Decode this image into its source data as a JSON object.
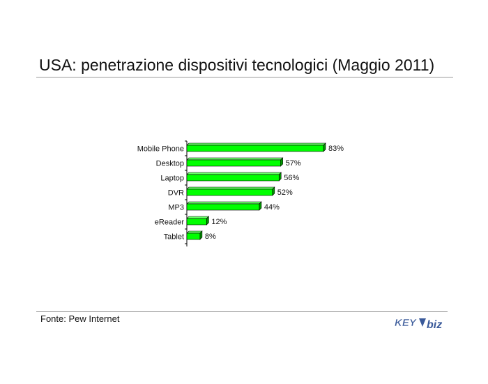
{
  "title": "USA: penetrazione dispositivi tecnologici (Maggio 2011)",
  "source": "Fonte: Pew Internet",
  "logo": {
    "part1": "KEY",
    "part2": "biz",
    "colors": {
      "key": "#3a5a9a",
      "biz": "#3a5a9a"
    }
  },
  "colors": {
    "bar_face": "#00ff00",
    "bar_side": "#009900",
    "bar_top": "#66ff66",
    "bar_stroke": "#000000"
  },
  "chart_data": {
    "type": "bar",
    "orientation": "horizontal",
    "title": "",
    "xlabel": "",
    "ylabel": "",
    "xlim": [
      0,
      100
    ],
    "grid": false,
    "categories": [
      "Mobile Phone",
      "Desktop",
      "Laptop",
      "DVR",
      "MP3",
      "eReader",
      "Tablet"
    ],
    "values": [
      83,
      57,
      56,
      52,
      44,
      12,
      8
    ],
    "data_labels": [
      "83%",
      "57%",
      "56%",
      "52%",
      "44%",
      "12%",
      "8%"
    ]
  }
}
